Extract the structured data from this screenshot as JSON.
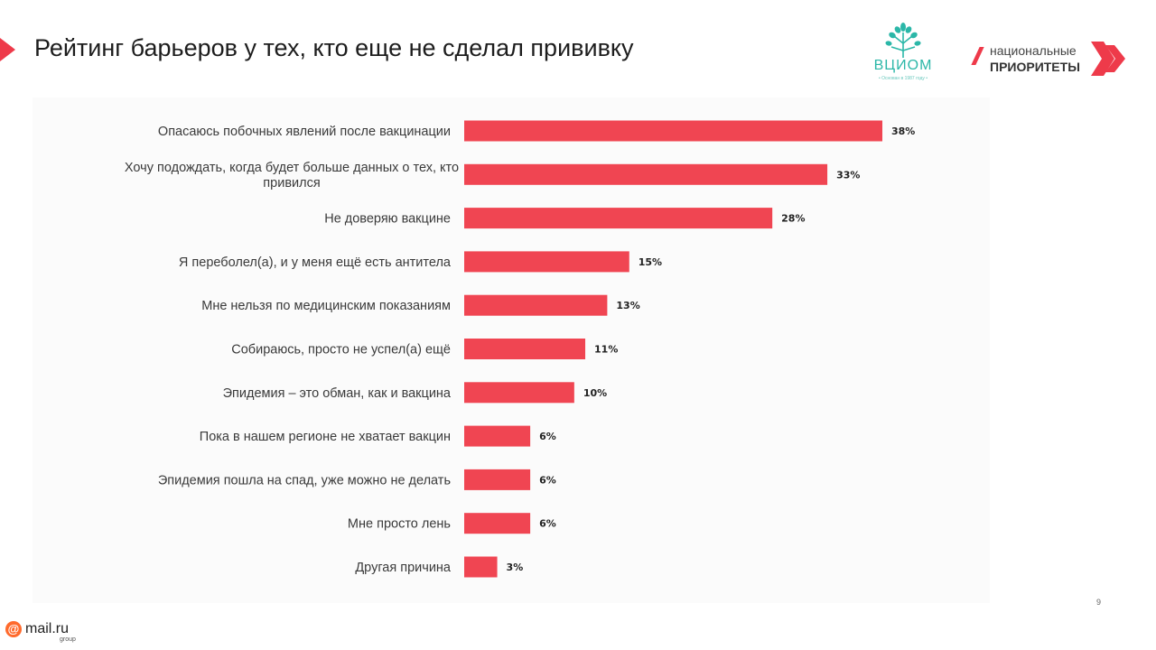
{
  "slide": {
    "title": "Рейтинг барьеров у тех, кто еще не сделал прививку",
    "page_number": "9",
    "accent_color": "#ee3a4a"
  },
  "logos": {
    "wciom": {
      "name": "ВЦИОМ",
      "subtitle": "• Основан в 1987 году •",
      "color": "#2bb7a8"
    },
    "national_priorities": {
      "line1": "национальные",
      "line2": "ПРИОРИТЕТЫ",
      "color": "#ee3a4a"
    },
    "mailru": {
      "symbol": "@",
      "name": "mail.ru",
      "sub": "group"
    }
  },
  "chart_data": {
    "type": "bar",
    "orientation": "horizontal",
    "title": "",
    "xlabel": "",
    "ylabel": "",
    "bar_color": "#f04552",
    "grid": false,
    "xlim": [
      0,
      38
    ],
    "categories": [
      [
        "Опасаюсь побочных явлений после вакцинации"
      ],
      [
        "Хочу подождать, когда будет больше данных о тех, кто",
        "привился"
      ],
      [
        "Не доверяю вакцине"
      ],
      [
        "Я переболел(а), и у меня ещё есть антитела"
      ],
      [
        "Мне нельзя по медицинским показаниям"
      ],
      [
        "Собираюсь, просто не успел(а) ещё"
      ],
      [
        "Эпидемия – это обман, как и вакцина"
      ],
      [
        "Пока в нашем регионе не хватает вакцин"
      ],
      [
        "Эпидемия пошла на спад, уже можно не делать"
      ],
      [
        "Мне просто лень"
      ],
      [
        "Другая причина"
      ]
    ],
    "values": [
      38,
      33,
      28,
      15,
      13,
      11,
      10,
      6,
      6,
      6,
      3
    ],
    "value_labels": [
      "38%",
      "33%",
      "28%",
      "15%",
      "13%",
      "11%",
      "10%",
      "6%",
      "6%",
      "6%",
      "3%"
    ]
  }
}
